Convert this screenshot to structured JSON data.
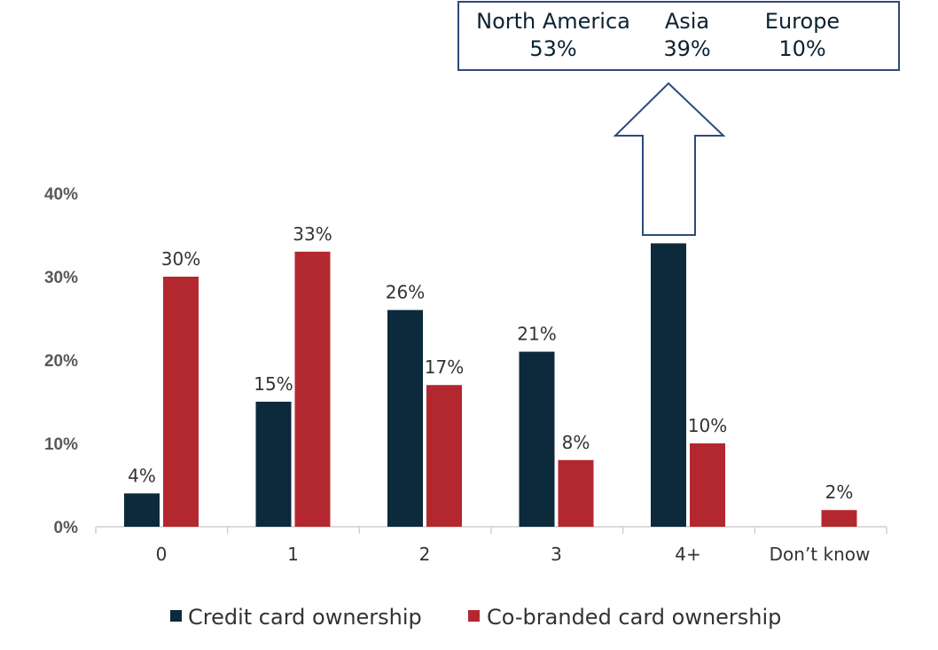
{
  "chart_data": {
    "type": "bar",
    "categories": [
      "0",
      "1",
      "2",
      "3",
      "4+",
      "Don’t know"
    ],
    "series": [
      {
        "name": "Credit card ownership",
        "values": [
          4,
          15,
          26,
          21,
          34,
          null
        ],
        "color": "#0c2a3c"
      },
      {
        "name": "Co-branded card ownership",
        "values": [
          30,
          33,
          17,
          8,
          10,
          2
        ],
        "color": "#b3282f"
      }
    ],
    "ylim": [
      0,
      40
    ],
    "yticks": [
      0,
      10,
      20,
      30,
      40
    ],
    "ytick_labels": [
      "0%",
      "10%",
      "20%",
      "30%",
      "40%"
    ],
    "value_suffix": "%",
    "grid": false,
    "legend_position": "bottom",
    "title": "",
    "xlabel": "",
    "ylabel": ""
  },
  "callout": {
    "points_to_category": "4+",
    "regions": [
      {
        "name": "North America",
        "value": "53%"
      },
      {
        "name": "Asia",
        "value": "39%"
      },
      {
        "name": "Europe",
        "value": "10%"
      }
    ],
    "border_color": "#2e4a7a"
  }
}
